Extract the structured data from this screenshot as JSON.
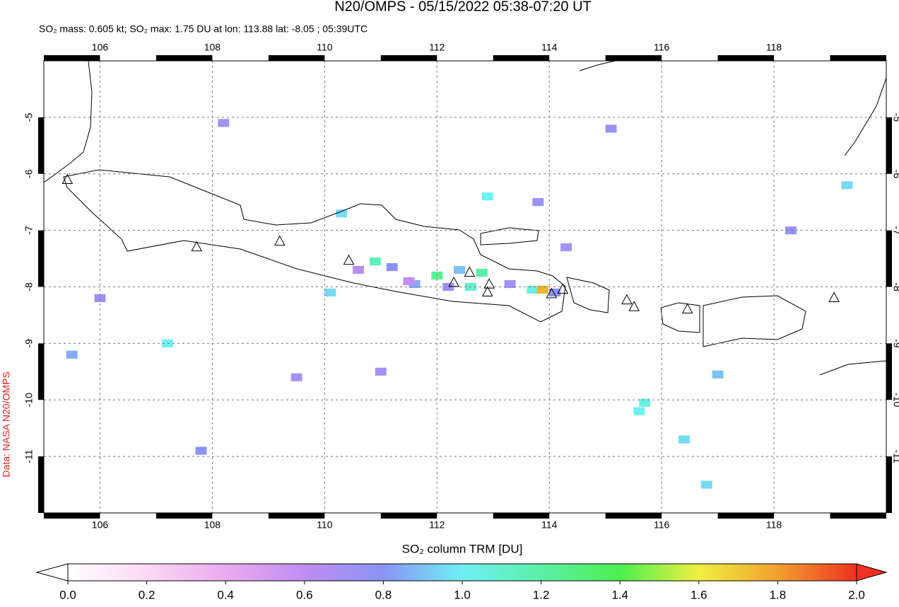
{
  "chart_data": {
    "type": "map",
    "title": "N20/OMPS - 05/15/2022 05:38-07:20 UT",
    "subtitle": "SO₂ mass: 0.605 kt; SO₂ max: 1.75 DU at lon: 113.88 lat: -8.05 ; 05:39UTC",
    "side_note": "Data: NASA N20/OMPS",
    "xlim": [
      105,
      120
    ],
    "ylim": [
      -12,
      -4
    ],
    "xticks": [
      106,
      108,
      110,
      112,
      114,
      116,
      118
    ],
    "yticks": [
      -5,
      -6,
      -7,
      -8,
      -9,
      -10,
      -11
    ],
    "grid": true,
    "pixels": {
      "lon": [
        110.9,
        111.2,
        110.6,
        110.1,
        111.6,
        112.0,
        112.4,
        112.8,
        113.3,
        113.7,
        113.88,
        114.1,
        112.6,
        112.2,
        111.0,
        105.5,
        107.2,
        107.8,
        109.5,
        110.3,
        113.8,
        114.3,
        115.6,
        116.4,
        117.0,
        118.3,
        119.3,
        115.1,
        112.9,
        108.2,
        106.0,
        115.7,
        111.5,
        116.8
      ],
      "lat": [
        -7.55,
        -7.65,
        -7.7,
        -8.1,
        -7.95,
        -7.8,
        -7.7,
        -7.75,
        -7.95,
        -8.05,
        -8.05,
        -8.1,
        -8.0,
        -8.0,
        -9.5,
        -9.2,
        -9.0,
        -10.9,
        -9.6,
        -6.7,
        -6.5,
        -7.3,
        -10.2,
        -10.7,
        -9.55,
        -7.0,
        -6.2,
        -5.2,
        -6.4,
        -5.1,
        -8.2,
        -10.05,
        -7.9,
        -11.5
      ],
      "values": [
        1.15,
        0.8,
        0.65,
        0.95,
        0.85,
        1.25,
        0.9,
        1.2,
        0.7,
        1.05,
        1.75,
        0.8,
        1.1,
        0.75,
        0.7,
        0.85,
        1.0,
        0.8,
        0.7,
        0.95,
        0.75,
        0.7,
        1.0,
        0.95,
        0.9,
        0.75,
        0.95,
        0.75,
        1.0,
        0.7,
        0.75,
        1.05,
        0.6,
        0.95
      ]
    },
    "volcanoes": {
      "lon": [
        105.42,
        107.72,
        109.2,
        110.43,
        112.3,
        112.58,
        112.93,
        112.9,
        114.04,
        114.24,
        115.38,
        115.51,
        116.46,
        119.07
      ],
      "lat": [
        -6.11,
        -7.3,
        -7.2,
        -7.54,
        -7.93,
        -7.75,
        -7.96,
        -8.1,
        -8.13,
        -8.05,
        -8.24,
        -8.36,
        -8.4,
        -8.2
      ]
    },
    "colorbar": {
      "label": "SO₂ column TRM [DU]",
      "lim": [
        0,
        2
      ],
      "ticks": [
        {
          "value": 0,
          "label": "0.0"
        },
        {
          "value": 0.2,
          "label": "0.2"
        },
        {
          "value": 0.4,
          "label": "0.4"
        },
        {
          "value": 0.6,
          "label": "0.6"
        },
        {
          "value": 0.8,
          "label": "0.8"
        },
        {
          "value": 1.0,
          "label": "1.0"
        },
        {
          "value": 1.2,
          "label": "1.2"
        },
        {
          "value": 1.4,
          "label": "1.4"
        },
        {
          "value": 1.6,
          "label": "1.6"
        },
        {
          "value": 1.8,
          "label": "1.8"
        },
        {
          "value": 2.0,
          "label": "2.0"
        }
      ],
      "colormap": [
        "#ffffff",
        "#fbd9f4",
        "#eaaaf0",
        "#bf8ef0",
        "#8a93f5",
        "#6ff0f5",
        "#5af0a8",
        "#4cf050",
        "#f0f040",
        "#f0a030",
        "#f03020"
      ]
    }
  }
}
